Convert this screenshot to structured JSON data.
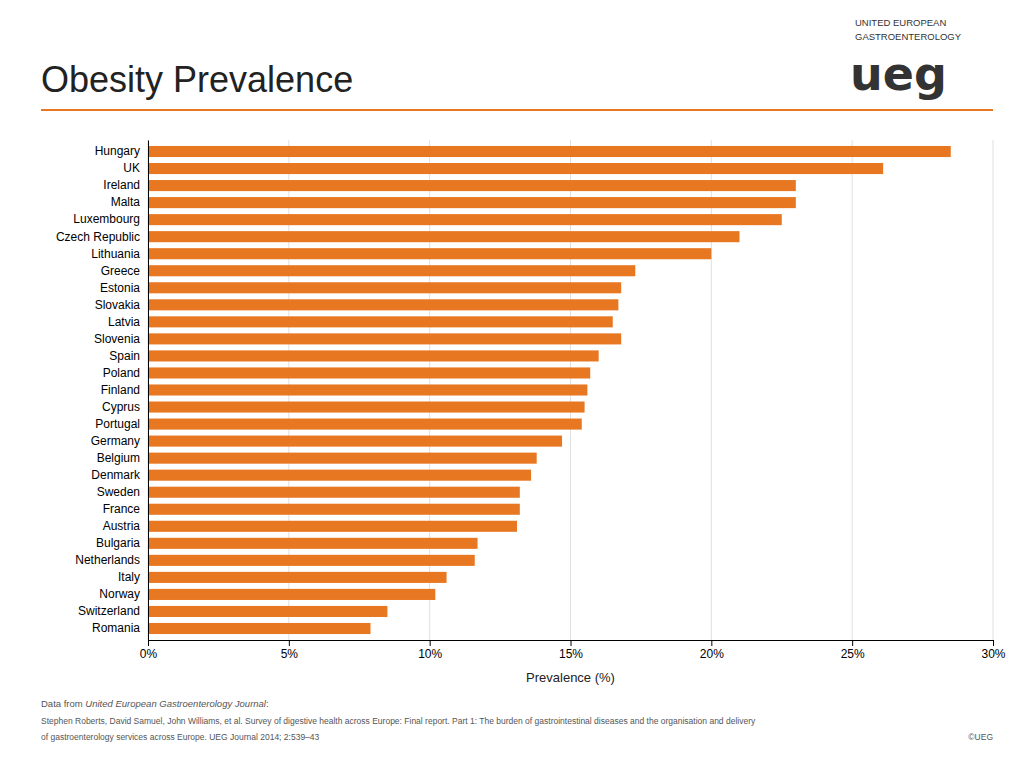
{
  "chart_data": {
    "type": "bar",
    "orientation": "horizontal",
    "title": "Obesity Prevalence",
    "xlabel": "Prevalence (%)",
    "color": "#E87722",
    "categories": [
      "Hungary",
      "UK",
      "Ireland",
      "Malta",
      "Luxembourg",
      "Czech Republic",
      "Lithuania",
      "Greece",
      "Estonia",
      "Slovakia",
      "Latvia",
      "Slovenia",
      "Spain",
      "Poland",
      "Finland",
      "Cyprus",
      "Portugal",
      "Germany",
      "Belgium",
      "Denmark",
      "Sweden",
      "France",
      "Austria",
      "Bulgaria",
      "Netherlands",
      "Italy",
      "Norway",
      "Switzerland",
      "Romania"
    ],
    "values": [
      28.5,
      26.1,
      23.0,
      23.0,
      22.5,
      21.0,
      20.0,
      17.3,
      16.8,
      16.7,
      16.5,
      16.8,
      16.0,
      15.7,
      15.6,
      15.5,
      15.4,
      14.7,
      13.8,
      13.6,
      13.2,
      13.2,
      13.1,
      11.7,
      11.6,
      10.6,
      10.2,
      8.5,
      7.9
    ],
    "xlim": [
      0,
      30
    ],
    "xticks": [
      {
        "value": 0,
        "label": "0%"
      },
      {
        "value": 5,
        "label": "5%"
      },
      {
        "value": 10,
        "label": "10%"
      },
      {
        "value": 15,
        "label": "15%"
      },
      {
        "value": 20,
        "label": "20%"
      },
      {
        "value": 25,
        "label": "25%"
      },
      {
        "value": 30,
        "label": "30%"
      }
    ],
    "grid": true,
    "annotations": [
      "UNITED EUROPEAN",
      "GASTROENTEROLOGY",
      "ueg",
      "Data from ",
      "United European Gastroenterology Journal",
      ":",
      "Stephen Roberts, David Samuel, John Williams, et al. Survey of digestive health across Europe: Final report. Part 1: The burden of gastrointestinal diseases and the organisation and delivery",
      "of gastroenterology services across Europe. UEG Journal 2014; 2:539–43",
      "©UEG"
    ]
  }
}
